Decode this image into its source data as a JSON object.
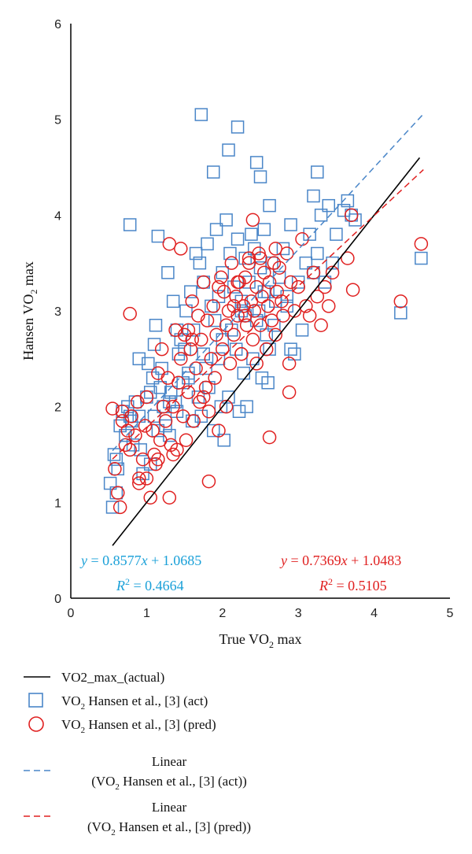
{
  "chart_data": {
    "type": "scatter",
    "xlabel": "True VO2 max",
    "ylabel": "Hansen VO2 max",
    "xlim": [
      0,
      5
    ],
    "ylim": [
      0,
      6
    ],
    "xticks": [
      "0",
      "1",
      "2",
      "3",
      "4",
      "5"
    ],
    "yticks": [
      "0",
      "1",
      "2",
      "3",
      "4",
      "5",
      "6"
    ],
    "grid": false,
    "legend_position": "bottom",
    "colors": {
      "actual": "#000000",
      "act": "#4a86c8",
      "pred": "#e02020",
      "eq_act": "#1aa0d8",
      "eq_pred": "#e02020"
    },
    "series": [
      {
        "name": "VO2_max_(actual)",
        "kind": "line",
        "style": "solid",
        "x": [
          0.55,
          4.6
        ],
        "y": [
          0.55,
          4.6
        ]
      },
      {
        "name": "VO2 Hansen et al., [3] (act)",
        "kind": "scatter",
        "marker": "square",
        "x": [
          0.52,
          0.55,
          0.57,
          0.6,
          0.62,
          0.65,
          0.68,
          0.72,
          0.75,
          0.78,
          0.8,
          0.82,
          0.85,
          0.9,
          0.92,
          0.95,
          1.0,
          1.02,
          1.05,
          1.08,
          1.1,
          1.12,
          1.15,
          1.18,
          1.2,
          1.22,
          1.25,
          1.28,
          1.3,
          1.32,
          1.35,
          1.38,
          1.4,
          1.42,
          1.45,
          1.48,
          1.5,
          1.52,
          1.55,
          1.58,
          1.6,
          1.62,
          1.65,
          1.68,
          1.7,
          1.72,
          1.75,
          1.78,
          1.8,
          1.82,
          1.85,
          1.88,
          1.9,
          1.92,
          1.95,
          1.98,
          2.0,
          2.02,
          2.05,
          2.08,
          2.1,
          2.12,
          2.15,
          2.18,
          2.2,
          2.22,
          2.25,
          2.28,
          2.3,
          2.32,
          2.35,
          2.38,
          2.4,
          2.42,
          2.45,
          2.48,
          2.5,
          2.52,
          2.55,
          2.58,
          2.6,
          2.62,
          2.65,
          2.68,
          2.7,
          2.75,
          2.8,
          2.85,
          2.9,
          2.95,
          3.0,
          3.05,
          3.1,
          3.15,
          3.2,
          3.25,
          3.3,
          3.35,
          3.4,
          3.45,
          3.5,
          3.6,
          3.65,
          3.7,
          3.75,
          4.35,
          4.62,
          0.78,
          1.15,
          1.72,
          1.88,
          2.08,
          2.2,
          2.45,
          2.5,
          2.62,
          3.25,
          0.6,
          0.9,
          1.05,
          1.3,
          1.55,
          1.75,
          2.0,
          2.3,
          2.6,
          2.9,
          3.2,
          1.1,
          1.4,
          1.95,
          2.25,
          2.55,
          2.85
        ],
        "y": [
          1.2,
          0.95,
          1.5,
          1.1,
          1.35,
          1.8,
          1.95,
          1.7,
          2.0,
          1.9,
          1.85,
          1.6,
          2.05,
          2.5,
          1.55,
          1.3,
          2.1,
          2.45,
          1.4,
          2.3,
          1.9,
          2.85,
          1.75,
          2.2,
          2.4,
          2.0,
          1.8,
          3.4,
          1.7,
          2.15,
          3.1,
          2.05,
          1.95,
          2.55,
          2.7,
          2.25,
          2.6,
          3.0,
          2.3,
          3.2,
          1.85,
          2.8,
          3.6,
          2.1,
          3.5,
          1.9,
          3.3,
          2.4,
          3.7,
          2.2,
          3.05,
          1.75,
          2.9,
          3.85,
          2.5,
          2.0,
          3.4,
          1.65,
          3.95,
          2.1,
          3.6,
          2.8,
          3.25,
          2.6,
          3.75,
          1.95,
          3.1,
          2.35,
          3.55,
          2.0,
          3.3,
          3.8,
          2.5,
          3.65,
          2.9,
          3.0,
          3.45,
          2.3,
          3.85,
          2.75,
          3.2,
          2.6,
          3.5,
          2.85,
          3.1,
          3.35,
          3.65,
          3.05,
          3.9,
          2.55,
          3.3,
          2.8,
          3.5,
          3.8,
          4.2,
          3.6,
          4.0,
          3.3,
          4.1,
          3.5,
          3.8,
          4.05,
          4.15,
          4.0,
          3.95,
          2.98,
          3.55,
          3.9,
          3.78,
          5.05,
          4.45,
          4.68,
          4.92,
          4.55,
          4.4,
          4.1,
          4.45,
          1.45,
          1.9,
          2.15,
          2.05,
          2.35,
          2.55,
          2.7,
          2.95,
          2.25,
          2.6,
          3.4,
          2.65,
          2.8,
          3.15,
          3.0,
          3.2,
          3.15
        ]
      },
      {
        "name": "VO2 Hansen et al., [3] (pred)",
        "kind": "scatter",
        "marker": "circle",
        "x": [
          0.55,
          0.58,
          0.62,
          0.65,
          0.68,
          0.72,
          0.75,
          0.78,
          0.8,
          0.85,
          0.88,
          0.9,
          0.95,
          0.98,
          1.0,
          1.05,
          1.08,
          1.1,
          1.12,
          1.15,
          1.18,
          1.2,
          1.22,
          1.25,
          1.28,
          1.3,
          1.32,
          1.35,
          1.38,
          1.4,
          1.42,
          1.45,
          1.48,
          1.5,
          1.52,
          1.55,
          1.58,
          1.6,
          1.62,
          1.65,
          1.68,
          1.7,
          1.72,
          1.75,
          1.78,
          1.8,
          1.82,
          1.85,
          1.88,
          1.9,
          1.92,
          1.95,
          1.98,
          2.0,
          2.02,
          2.05,
          2.08,
          2.1,
          2.12,
          2.15,
          2.18,
          2.2,
          2.22,
          2.25,
          2.28,
          2.3,
          2.32,
          2.35,
          2.38,
          2.4,
          2.42,
          2.45,
          2.48,
          2.5,
          2.52,
          2.55,
          2.58,
          2.6,
          2.62,
          2.65,
          2.68,
          2.7,
          2.72,
          2.75,
          2.78,
          2.8,
          2.85,
          2.88,
          2.9,
          2.95,
          3.0,
          3.05,
          3.1,
          3.15,
          3.2,
          3.25,
          3.3,
          3.35,
          3.4,
          3.45,
          3.65,
          3.7,
          3.72,
          4.35,
          4.62,
          0.78,
          1.82,
          2.62,
          1.3,
          0.68,
          2.88,
          1.45,
          2.2,
          2.4,
          1.6,
          2.05,
          2.3,
          1.75,
          1.95,
          2.15,
          2.5,
          2.7,
          2.25,
          1.35,
          1.0,
          0.9,
          2.35,
          2.45,
          1.55,
          1.15
        ],
        "y": [
          1.98,
          1.35,
          1.1,
          0.95,
          1.85,
          1.6,
          1.75,
          1.55,
          1.9,
          1.7,
          2.05,
          1.25,
          1.45,
          1.8,
          2.1,
          1.05,
          1.75,
          1.5,
          1.4,
          2.35,
          1.65,
          2.6,
          2.0,
          1.85,
          2.3,
          1.05,
          1.6,
          2.0,
          2.8,
          1.55,
          2.25,
          2.5,
          1.9,
          2.75,
          1.65,
          2.15,
          2.6,
          3.1,
          1.85,
          2.4,
          2.95,
          2.05,
          2.7,
          3.3,
          2.2,
          2.9,
          1.95,
          2.5,
          3.05,
          2.3,
          2.75,
          1.75,
          3.35,
          2.6,
          3.2,
          2.0,
          3.0,
          2.45,
          3.5,
          2.75,
          3.15,
          2.95,
          3.3,
          2.55,
          3.05,
          3.35,
          2.85,
          3.5,
          3.1,
          2.7,
          3.0,
          3.25,
          3.6,
          2.85,
          3.15,
          3.4,
          2.6,
          3.05,
          3.3,
          2.9,
          3.5,
          2.75,
          3.2,
          3.45,
          3.1,
          2.95,
          3.6,
          2.45,
          3.3,
          3.0,
          3.25,
          3.75,
          3.05,
          2.95,
          3.4,
          3.15,
          2.85,
          3.25,
          3.05,
          3.4,
          3.55,
          4.0,
          3.22,
          3.1,
          3.7,
          2.97,
          1.22,
          1.68,
          3.7,
          1.95,
          2.15,
          3.65,
          3.3,
          3.95,
          2.7,
          2.85,
          2.95,
          2.1,
          3.25,
          3.05,
          3.55,
          3.65,
          2.55,
          1.5,
          1.25,
          1.2,
          3.55,
          2.45,
          2.8,
          1.45
        ]
      },
      {
        "name": "Linear (VO2 Hansen et al., [3] (act))",
        "kind": "line",
        "style": "dashed",
        "slope": 0.8577,
        "intercept": 1.0685,
        "x": [
          0.55,
          4.65
        ]
      },
      {
        "name": "Linear (VO2 Hansen et al., [3] (pred))",
        "kind": "line",
        "style": "dashed",
        "slope": 0.7369,
        "intercept": 1.0483,
        "x": [
          0.55,
          4.65
        ]
      }
    ],
    "annotations": {
      "eq_act": {
        "y_eq_prefix": "y",
        "y_eq_body": " = 0.8577",
        "y_eq_var": "x",
        "y_eq_tail": " + 1.0685",
        "r2_prefix": "R",
        "r2_sup": "2",
        "r2_tail": " = 0.4664"
      },
      "eq_pred": {
        "y_eq_prefix": "y",
        "y_eq_body": " = 0.7369",
        "y_eq_var": "x",
        "y_eq_tail": " + 1.0483",
        "r2_prefix": "R",
        "r2_sup": "2",
        "r2_tail": " = 0.5105"
      }
    }
  },
  "axis_labels": {
    "x_main": "True VO",
    "x_sub": "2",
    "x_tail": " max",
    "y_main": "Hansen VO",
    "y_sub": "2",
    "y_tail": " max"
  },
  "legend": {
    "actual": "VO2_max_(actual)",
    "act_main": "VO",
    "act_sub": "2",
    "act_tail": " Hansen et al., [3] (act)",
    "pred_main": "VO",
    "pred_sub": "2",
    "pred_tail": " Hansen et al., [3] (pred)",
    "lin_act_line1": "Linear",
    "lin_act_line2_a": "(VO",
    "lin_act_line2_sub": "2",
    "lin_act_line2_b": " Hansen et al., [3] (act))",
    "lin_pred_line1": "Linear",
    "lin_pred_line2_a": "(VO",
    "lin_pred_line2_sub": "2",
    "lin_pred_line2_b": " Hansen et al., [3] (pred))"
  }
}
